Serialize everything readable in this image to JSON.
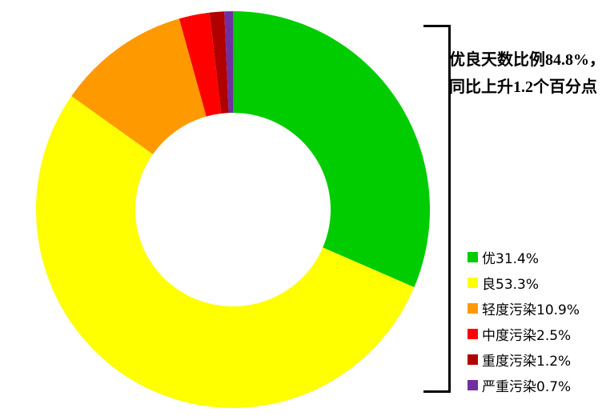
{
  "page": {
    "background_color": "#FFFFFF"
  },
  "chart_data": {
    "type": "pie",
    "subtype": "donut",
    "unit": "%",
    "direction": "clockwise",
    "start_angle_deg": 0,
    "legend_position": "right",
    "inner_radius_ratio": 0.49,
    "slices": [
      {
        "name": "优",
        "value": 31.4,
        "color": "#00CC00",
        "legend_label": "优31.4%"
      },
      {
        "name": "良",
        "value": 53.3,
        "color": "#FFFF00",
        "legend_label": "良53.3%"
      },
      {
        "name": "轻度污染",
        "value": 10.9,
        "color": "#FF9900",
        "legend_label": "轻度污染10.9%"
      },
      {
        "name": "中度污染",
        "value": 2.5,
        "color": "#FF0000",
        "legend_label": "中度污染2.5%"
      },
      {
        "name": "重度污染",
        "value": 1.2,
        "color": "#B00000",
        "legend_label": "重度污染1.2%"
      },
      {
        "name": "严重污染",
        "value": 0.7,
        "color": "#7030A0",
        "legend_label": "严重污染0.7%"
      }
    ],
    "annotation": {
      "line1": "优良天数比例84.8%，",
      "line2": "同比上升1.2个百分点"
    }
  }
}
